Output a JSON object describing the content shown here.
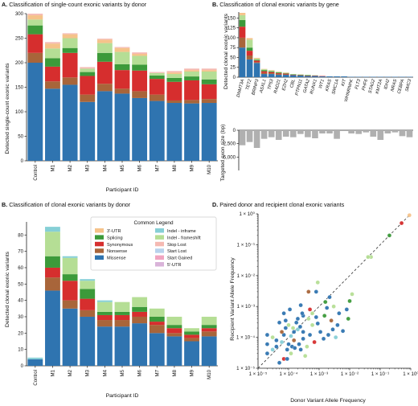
{
  "colors": {
    "3'-UTR": "#f5c38a",
    "Splicing": "#3c9a3a",
    "Synonymous": "#d62e2e",
    "Nonsense": "#a8653a",
    "Missense": "#2f74b0",
    "Indel - inframe": "#86cfd6",
    "Indel - frameshift": "#b5de95",
    "Stop Lost": "#f5b9b2",
    "Start Lost": "#b8d2ec",
    "Start Gained": "#f0a4c0",
    "5'-UTR": "#d9b3d9",
    "neutral_bar": "#b0b0b0",
    "panelA_top": "#cfe9b6"
  },
  "chart_data": [
    {
      "panel": "A",
      "type": "bar",
      "stacked": true,
      "title_label": "A.",
      "title": "Classification of single-count exonic variants by donor",
      "xlabel": "Participant ID",
      "ylabel": "Detected single-count exonic variants",
      "ylim": [
        0,
        300
      ],
      "yticks": [
        0,
        50,
        100,
        150,
        200,
        250,
        300
      ],
      "categories": [
        "Control",
        "M1",
        "M2",
        "M3",
        "M4",
        "M5",
        "M6",
        "M7",
        "M8",
        "M9",
        "M10"
      ],
      "series": [
        {
          "name": "Missense",
          "values": [
            200,
            147,
            155,
            120,
            142,
            137,
            128,
            122,
            118,
            117,
            118
          ]
        },
        {
          "name": "Nonsense",
          "values": [
            20,
            15,
            15,
            15,
            15,
            10,
            14,
            13,
            5,
            7,
            8
          ]
        },
        {
          "name": "Synonymous",
          "values": [
            38,
            30,
            50,
            38,
            45,
            38,
            42,
            32,
            38,
            40,
            30
          ]
        },
        {
          "name": "Splicing",
          "values": [
            18,
            17,
            10,
            8,
            18,
            12,
            12,
            7,
            8,
            8,
            10
          ]
        },
        {
          "name": "Indel - frameshift",
          "values": [
            12,
            20,
            20,
            7,
            20,
            25,
            18,
            5,
            8,
            10,
            16
          ]
        },
        {
          "name": "3'-UTR",
          "values": [
            9,
            10,
            8,
            0,
            7,
            8,
            4,
            0,
            3,
            3,
            3
          ]
        },
        {
          "name": "Stop Lost",
          "values": [
            3,
            3,
            2,
            3,
            2,
            2,
            3,
            2,
            3,
            3,
            3
          ]
        }
      ]
    },
    {
      "panel": "B",
      "type": "bar",
      "stacked": true,
      "title_label": "B.",
      "title": "Classification of clonal exonic variants by gene",
      "ylabel": "Detected clonal exonic variants",
      "ylim": [
        0,
        165
      ],
      "yticks": [
        0,
        25,
        50,
        75,
        100,
        125,
        150
      ],
      "categories": [
        "DNMT3A",
        "TET2",
        "BRINP3",
        "ASXL1",
        "TP53",
        "RAD21",
        "EZH2",
        "CBL",
        "PTPN11",
        "GATA2",
        "RUNX1",
        "WT1",
        "KRAS",
        "SMC1A",
        "KIT",
        "WHNRNPK",
        "FLT3",
        "PHF6",
        "STAG2",
        "KMT2A",
        "IDH2",
        "NRAS",
        "CEBPA",
        "SMC3"
      ],
      "series": [
        {
          "name": "Missense",
          "values": [
            75,
            45,
            36,
            8,
            8,
            6,
            6,
            5,
            4,
            3,
            3,
            2,
            2,
            2,
            2,
            1,
            1,
            1,
            1,
            1,
            1,
            1,
            1,
            1
          ]
        },
        {
          "name": "Nonsense",
          "values": [
            25,
            10,
            2,
            3,
            2,
            2,
            1,
            0,
            0,
            0,
            0,
            0,
            0,
            0,
            0,
            0,
            0,
            0,
            0,
            0,
            0,
            0,
            0,
            0
          ]
        },
        {
          "name": "Synonymous",
          "values": [
            28,
            12,
            4,
            4,
            3,
            2,
            2,
            1,
            1,
            1,
            1,
            1,
            0,
            0,
            0,
            0,
            0,
            0,
            0,
            0,
            0,
            0,
            0,
            0
          ]
        },
        {
          "name": "Splicing",
          "values": [
            17,
            8,
            2,
            3,
            2,
            2,
            1,
            1,
            1,
            1,
            0,
            0,
            0,
            0,
            0,
            0,
            0,
            0,
            0,
            0,
            0,
            0,
            0,
            0
          ]
        },
        {
          "name": "Indel - frameshift",
          "values": [
            12,
            20,
            3,
            2,
            2,
            1,
            1,
            1,
            1,
            1,
            1,
            0,
            0,
            0,
            0,
            0,
            0,
            0,
            0,
            0,
            0,
            0,
            0,
            0
          ]
        },
        {
          "name": "3'-UTR",
          "values": [
            6,
            4,
            2,
            1,
            1,
            1,
            1,
            0,
            0,
            0,
            0,
            0,
            0,
            0,
            0,
            0,
            0,
            0,
            0,
            0,
            0,
            0,
            0,
            0
          ]
        }
      ],
      "lower": {
        "ylabel": "Targeted exon size (bp)",
        "ylim": [
          0,
          7500
        ],
        "yticks": [
          0,
          2500,
          5000
        ],
        "ytick_labels": [
          "0",
          "2,500",
          "5,000"
        ],
        "values": [
          2800,
          2200,
          3300,
          1600,
          1300,
          1800,
          1200,
          1300,
          700,
          1300,
          1500,
          600,
          600,
          1600,
          0,
          600,
          700,
          400,
          1200,
          1800,
          600,
          400,
          1100,
          1300
        ]
      }
    },
    {
      "panel": "B2",
      "type": "bar",
      "stacked": true,
      "title_label": "B.",
      "title": "Classification of clonal exonic variants by donor",
      "xlabel": "Participant ID",
      "ylabel": "Detected clonal exonic variants",
      "ylim": [
        0,
        88
      ],
      "yticks": [
        0,
        10,
        20,
        30,
        40,
        50,
        60,
        70,
        80
      ],
      "categories": [
        "Control",
        "M1",
        "M2",
        "M3",
        "M4",
        "M5",
        "M6",
        "M7",
        "M8",
        "M9",
        "M10"
      ],
      "series": [
        {
          "name": "Missense",
          "values": [
            4,
            46,
            35,
            30,
            24,
            24,
            26,
            20,
            18,
            15,
            18
          ]
        },
        {
          "name": "Nonsense",
          "values": [
            0,
            8,
            5,
            4,
            4,
            4,
            4,
            5,
            2,
            2,
            3
          ]
        },
        {
          "name": "Synonymous",
          "values": [
            0,
            6,
            12,
            7,
            3,
            3,
            3,
            2,
            3,
            2,
            2
          ]
        },
        {
          "name": "Splicing",
          "values": [
            0,
            7,
            4,
            6,
            2,
            2,
            3,
            3,
            2,
            2,
            2
          ]
        },
        {
          "name": "Indel - frameshift",
          "values": [
            0,
            15,
            10,
            5,
            6,
            6,
            6,
            5,
            5,
            2,
            5
          ]
        },
        {
          "name": "Indel - inframe",
          "values": [
            1,
            3,
            1,
            1,
            1,
            0,
            0,
            0,
            0,
            0,
            0
          ]
        }
      ],
      "legend": {
        "title": "Common Legend",
        "entries": [
          "3'-UTR",
          "Splicing",
          "Synonymous",
          "Nonsense",
          "Missense",
          "Indel - inframe",
          "Indel - frameshift",
          "Stop Lost",
          "Start Lost",
          "Start Gained",
          "5'-UTR"
        ]
      }
    },
    {
      "panel": "D",
      "type": "scatter",
      "title_label": "D.",
      "title": "Paired donor and recipient clonal exonic variants",
      "xlabel": "Donor Variant Allele Frequency",
      "ylabel": "Recipient Variant Allele Frequency",
      "xscale": "log",
      "yscale": "log",
      "xlim": [
        1e-05,
        1
      ],
      "ylim": [
        1e-05,
        1
      ],
      "tick_labels": [
        "1 × 10⁻⁵",
        "1 × 10⁻⁴",
        "1 × 10⁻³",
        "1 × 10⁻²",
        "1 × 10⁻¹",
        "1 × 10⁰"
      ],
      "diagonal": true,
      "points": [
        {
          "x": 0.5,
          "y": 0.5,
          "c": "Synonymous"
        },
        {
          "x": 0.9,
          "y": 0.9,
          "c": "3'-UTR"
        },
        {
          "x": 0.2,
          "y": 0.2,
          "c": "Splicing"
        },
        {
          "x": 0.05,
          "y": 0.04,
          "c": "Indel - frameshift"
        },
        {
          "x": 0.04,
          "y": 0.04,
          "c": "Indel - frameshift"
        },
        {
          "x": 0.00045,
          "y": 0.003,
          "c": "Nonsense"
        },
        {
          "x": 0.0009,
          "y": 0.006,
          "c": "Indel - frameshift"
        },
        {
          "x": 0.0008,
          "y": 0.003,
          "c": "Missense"
        },
        {
          "x": 0.012,
          "y": 0.0025,
          "c": "Indel - frameshift"
        },
        {
          "x": 0.01,
          "y": 0.0015,
          "c": "Splicing"
        },
        {
          "x": 0.008,
          "y": 0.0008,
          "c": "Missense"
        },
        {
          "x": 0.00025,
          "y": 0.0011,
          "c": "Missense"
        },
        {
          "x": 0.0005,
          "y": 0.0008,
          "c": "Synonymous"
        },
        {
          "x": 0.0018,
          "y": 0.0009,
          "c": "Missense"
        },
        {
          "x": 0.003,
          "y": 0.001,
          "c": "Indel - frameshift"
        },
        {
          "x": 0.0003,
          "y": 0.0005,
          "c": "Missense"
        },
        {
          "x": 0.00045,
          "y": 0.0004,
          "c": "Indel - frameshift"
        },
        {
          "x": 0.0015,
          "y": 0.0005,
          "c": "Splicing"
        },
        {
          "x": 0.00018,
          "y": 0.0003,
          "c": "Missense"
        },
        {
          "x": 0.00011,
          "y": 0.0008,
          "c": "Missense"
        },
        {
          "x": 8e-05,
          "y": 0.00035,
          "c": "Missense"
        },
        {
          "x": 5e-05,
          "y": 0.0003,
          "c": "Missense"
        },
        {
          "x": 0.0006,
          "y": 0.00025,
          "c": "Indel - frameshift"
        },
        {
          "x": 0.0009,
          "y": 0.00028,
          "c": "Missense"
        },
        {
          "x": 0.0025,
          "y": 0.00035,
          "c": "Nonsense"
        },
        {
          "x": 0.004,
          "y": 0.00025,
          "c": "Missense"
        },
        {
          "x": 0.0002,
          "y": 0.00018,
          "c": "Indel - inframe"
        },
        {
          "x": 0.00015,
          "y": 0.00015,
          "c": "Missense"
        },
        {
          "x": 7e-05,
          "y": 0.00012,
          "c": "Missense"
        },
        {
          "x": 4e-05,
          "y": 8e-05,
          "c": "Missense"
        },
        {
          "x": 3e-05,
          "y": 0.0001,
          "c": "Indel - frameshift"
        },
        {
          "x": 6e-05,
          "y": 7e-05,
          "c": "Indel - inframe"
        },
        {
          "x": 0.0001,
          "y": 6e-05,
          "c": "Missense"
        },
        {
          "x": 0.00013,
          "y": 5e-05,
          "c": "Missense"
        },
        {
          "x": 9e-05,
          "y": 4e-05,
          "c": "Missense"
        },
        {
          "x": 0.00012,
          "y": 3e-05,
          "c": "Indel - frameshift"
        },
        {
          "x": 0.00016,
          "y": 4.5e-05,
          "c": "Missense"
        },
        {
          "x": 0.00022,
          "y": 6e-05,
          "c": "Missense"
        },
        {
          "x": 0.0003,
          "y": 9e-05,
          "c": "Missense"
        },
        {
          "x": 0.0004,
          "y": 5e-05,
          "c": "Indel - frameshift"
        },
        {
          "x": 0.0005,
          "y": 0.00012,
          "c": "Missense"
        },
        {
          "x": 0.0007,
          "y": 7e-05,
          "c": "Synonymous"
        },
        {
          "x": 0.0011,
          "y": 0.00015,
          "c": "Missense"
        },
        {
          "x": 0.0014,
          "y": 9e-05,
          "c": "Missense"
        },
        {
          "x": 0.002,
          "y": 0.00012,
          "c": "Missense"
        },
        {
          "x": 0.0028,
          "y": 0.00018,
          "c": "Missense"
        },
        {
          "x": 0.0035,
          "y": 0.0001,
          "c": "Indel - inframe"
        },
        {
          "x": 0.006,
          "y": 0.00016,
          "c": "Missense"
        },
        {
          "x": 0.009,
          "y": 0.0004,
          "c": "Splicing"
        },
        {
          "x": 7e-05,
          "y": 2e-05,
          "c": "Synonymous"
        },
        {
          "x": 5e-05,
          "y": 1.5e-05,
          "c": "Missense"
        },
        {
          "x": 9e-05,
          "y": 2e-05,
          "c": "Missense"
        },
        {
          "x": 0.00035,
          "y": 2.5e-05,
          "c": "Indel - frameshift"
        },
        {
          "x": 0.0003,
          "y": 0.00015,
          "c": "Missense"
        },
        {
          "x": 0.00024,
          "y": 0.00022,
          "c": "Missense"
        },
        {
          "x": 4e-05,
          "y": 5e-05,
          "c": "Missense"
        },
        {
          "x": 3e-05,
          "y": 4e-05,
          "c": "Indel - inframe"
        },
        {
          "x": 2e-05,
          "y": 3e-05,
          "c": "Missense"
        },
        {
          "x": 2e-05,
          "y": 6e-05,
          "c": "Missense"
        },
        {
          "x": 6e-05,
          "y": 0.00015,
          "c": "Nonsense"
        },
        {
          "x": 8e-05,
          "y": 0.0002,
          "c": "Missense"
        },
        {
          "x": 0.00014,
          "y": 0.0002,
          "c": "Indel - frameshift"
        },
        {
          "x": 0.0002,
          "y": 0.0004,
          "c": "Missense"
        },
        {
          "x": 0.00028,
          "y": 0.0006,
          "c": "Missense"
        },
        {
          "x": 0.0006,
          "y": 0.0006,
          "c": "Indel - frameshift"
        },
        {
          "x": 7e-05,
          "y": 0.0006,
          "c": "Missense"
        },
        {
          "x": 0.0001,
          "y": 0.00025,
          "c": "Indel - frameshift"
        },
        {
          "x": 2e-05,
          "y": 0.00012,
          "c": "Missense"
        },
        {
          "x": 0.00015,
          "y": 8e-05,
          "c": "Nonsense"
        },
        {
          "x": 0.00025,
          "y": 4e-05,
          "c": "Missense"
        },
        {
          "x": 0.0045,
          "y": 0.0006,
          "c": "Missense"
        },
        {
          "x": 0.0022,
          "y": 0.002,
          "c": "Missense"
        },
        {
          "x": 0.0016,
          "y": 0.0014,
          "c": "Splicing"
        },
        {
          "x": 0.00012,
          "y": 0.00011,
          "c": "Indel - inframe"
        },
        {
          "x": 0.0008,
          "y": 0.00045,
          "c": "Missense"
        }
      ]
    }
  ]
}
